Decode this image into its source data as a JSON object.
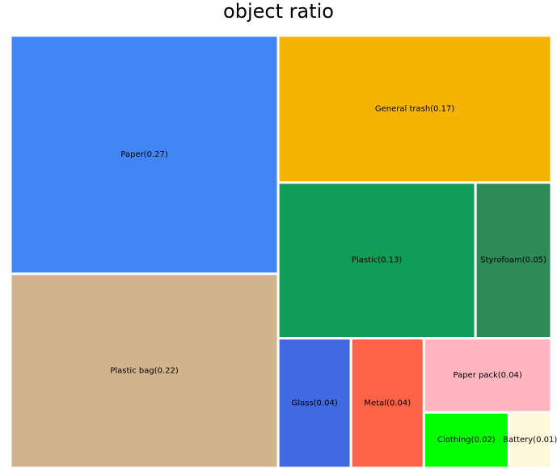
{
  "chart_data": {
    "type": "treemap",
    "title": "object ratio",
    "items": [
      {
        "name": "Paper",
        "value": 0.27,
        "label": "Paper(0.27)",
        "color": "#4285F4"
      },
      {
        "name": "Plastic bag",
        "value": 0.22,
        "label": "Plastic bag(0.22)",
        "color": "#D2B48C"
      },
      {
        "name": "General trash",
        "value": 0.17,
        "label": "General trash(0.17)",
        "color": "#F4B400"
      },
      {
        "name": "Plastic",
        "value": 0.13,
        "label": "Plastic(0.13)",
        "color": "#0F9D58"
      },
      {
        "name": "Styrofoam",
        "value": 0.05,
        "label": "Styrofoam(0.05)",
        "color": "#2E8B57"
      },
      {
        "name": "Glass",
        "value": 0.04,
        "label": "Glass(0.04)",
        "color": "#4169E1"
      },
      {
        "name": "Metal",
        "value": 0.04,
        "label": "Metal(0.04)",
        "color": "#FF6347"
      },
      {
        "name": "Paper pack",
        "value": 0.04,
        "label": "Paper pack(0.04)",
        "color": "#FFB6C1"
      },
      {
        "name": "Clothing",
        "value": 0.02,
        "label": "Clothing(0.02)",
        "color": "#00FF00"
      },
      {
        "name": "Battery",
        "value": 0.01,
        "label": "Battery(0.01)",
        "color": "#FFF8DC"
      }
    ]
  }
}
